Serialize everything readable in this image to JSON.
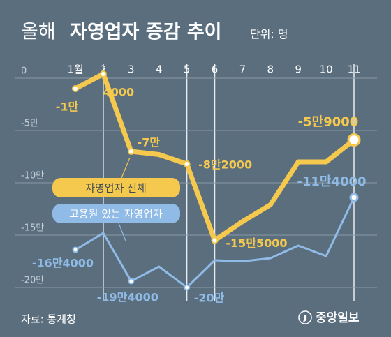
{
  "chart_data": {
    "type": "line",
    "title_light": "올해",
    "title": "자영업자 증감 추이",
    "unit_note": "단위: 명",
    "source": "자료: 통계청",
    "logo": "중앙일보",
    "categories": [
      "1월",
      "2",
      "3",
      "4",
      "5",
      "6",
      "7",
      "8",
      "9",
      "10",
      "11"
    ],
    "series": [
      {
        "name": "자영업자 전체",
        "color": "#f4c94e",
        "values": [
          -10000,
          4000,
          -70000,
          -73000,
          -82000,
          -155000,
          -137000,
          -121000,
          -80000,
          -80000,
          -59000
        ],
        "value_labels": [
          "-1만",
          "4000",
          "-7만",
          null,
          "-8만2000",
          "-15만5000",
          null,
          null,
          null,
          null,
          "-5만9000"
        ]
      },
      {
        "name": "고용원 있는 자영업자",
        "color": "#8fbbe6",
        "values": [
          -164000,
          -148000,
          -194000,
          -180000,
          -200000,
          -174000,
          -175000,
          -172000,
          -160000,
          -170000,
          -114000
        ],
        "value_labels": [
          "-16만4000",
          null,
          "-19만4000",
          null,
          "-20만",
          null,
          null,
          null,
          null,
          null,
          "-11만4000"
        ]
      }
    ],
    "ylim": [
      -215000,
      15000
    ],
    "yticks": [
      0,
      {
        "value": -50000,
        "label": "-5만"
      },
      {
        "value": -100000,
        "label": "-10만"
      },
      {
        "value": -150000,
        "label": "-15만"
      },
      {
        "value": -200000,
        "label": "-20만"
      }
    ],
    "grid": true
  }
}
